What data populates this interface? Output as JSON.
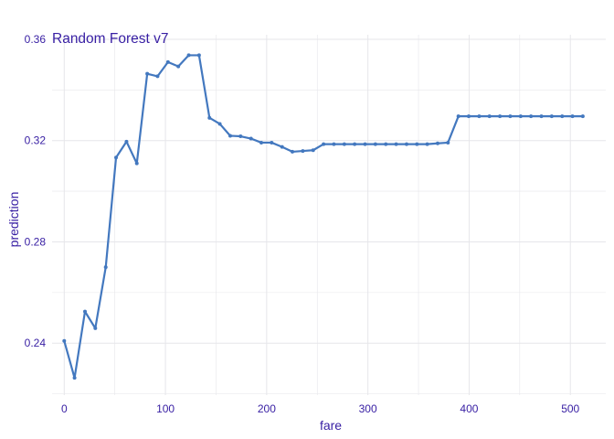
{
  "chart_data": {
    "type": "line",
    "title": "Random Forest v7",
    "xlabel": "fare",
    "ylabel": "prediction",
    "xlim": [
      -12,
      535
    ],
    "ylim": [
      0.2195,
      0.3618
    ],
    "x_ticks": [
      0,
      100,
      200,
      300,
      400,
      500
    ],
    "y_ticks": [
      0.24,
      0.28,
      0.32,
      0.36
    ],
    "y_tick_labels": [
      "0.24",
      "0.28",
      "0.32",
      "0.36"
    ],
    "grid": true,
    "colors": {
      "line": "#4378bf",
      "text": "#371ea3",
      "grid": "#e6e6ea"
    },
    "series": [
      {
        "x": [
          0,
          10.2,
          20.5,
          30.7,
          41.0,
          51.2,
          61.5,
          71.7,
          82.0,
          92.2,
          102.5,
          112.7,
          123.0,
          133.2,
          143.5,
          153.7,
          164.0,
          174.2,
          184.5,
          194.7,
          204.9,
          215.2,
          225.4,
          235.7,
          245.9,
          256.2,
          266.4,
          276.7,
          286.9,
          297.2,
          307.4,
          317.7,
          327.9,
          338.2,
          348.4,
          358.6,
          368.9,
          379.1,
          389.4,
          399.6,
          409.9,
          420.1,
          430.4,
          440.6,
          450.9,
          461.1,
          471.4,
          481.6,
          491.9,
          502.1,
          512.3
        ],
        "values": [
          0.2409,
          0.2263,
          0.2525,
          0.2459,
          0.27,
          0.3133,
          0.3196,
          0.311,
          0.3464,
          0.3454,
          0.351,
          0.3493,
          0.3537,
          0.3537,
          0.329,
          0.3266,
          0.3219,
          0.3217,
          0.3208,
          0.3192,
          0.3192,
          0.3175,
          0.3156,
          0.3159,
          0.3162,
          0.3186,
          0.3186,
          0.3186,
          0.3186,
          0.3186,
          0.3186,
          0.3186,
          0.3186,
          0.3186,
          0.3186,
          0.3186,
          0.3189,
          0.3192,
          0.3296,
          0.3296,
          0.3296,
          0.3296,
          0.3296,
          0.3296,
          0.3296,
          0.3296,
          0.3296,
          0.3296,
          0.3296,
          0.3296,
          0.3296
        ]
      }
    ]
  }
}
